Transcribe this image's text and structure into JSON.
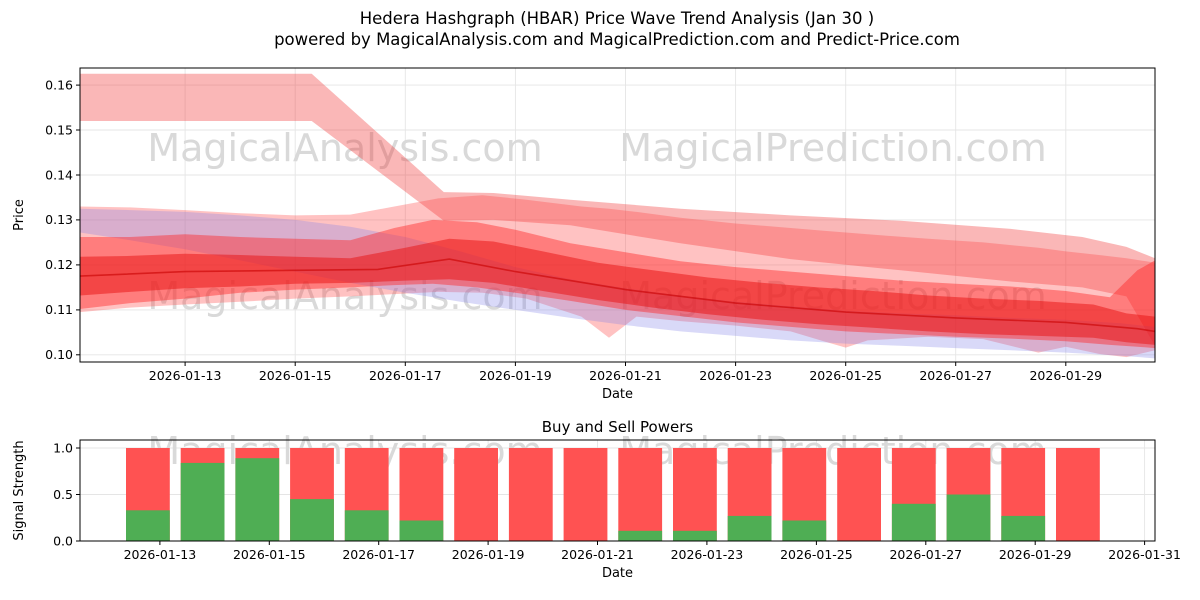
{
  "figure": {
    "title": "Hedera Hashgraph (HBAR) Price Wave Trend Analysis (Jan 30 )",
    "subtitle": "powered by MagicalAnalysis.com and MagicalPrediction.com and Predict-Price.com",
    "background_color": "#ffffff"
  },
  "watermark": {
    "texts": [
      "MagicalAnalysis.com",
      "MagicalPrediction.com"
    ],
    "color": "#d9d9d9"
  },
  "chart_data": [
    {
      "name": "price-wave-chart",
      "type": "area",
      "title": "",
      "xlabel": "Date",
      "ylabel": "Price",
      "grid": true,
      "ylim": [
        0.0984,
        0.1638
      ],
      "yticks": [
        {
          "v": 0.1,
          "label": "0.10"
        },
        {
          "v": 0.11,
          "label": "0.11"
        },
        {
          "v": 0.12,
          "label": "0.12"
        },
        {
          "v": 0.13,
          "label": "0.13"
        },
        {
          "v": 0.14,
          "label": "0.14"
        },
        {
          "v": 0.15,
          "label": "0.15"
        },
        {
          "v": 0.16,
          "label": "0.16"
        }
      ],
      "xlim_days": [
        11.09,
        30.62
      ],
      "xticks": [
        {
          "day": 13,
          "label": "2026-01-13"
        },
        {
          "day": 15,
          "label": "2026-01-15"
        },
        {
          "day": 17,
          "label": "2026-01-17"
        },
        {
          "day": 19,
          "label": "2026-01-19"
        },
        {
          "day": 21,
          "label": "2026-01-21"
        },
        {
          "day": 23,
          "label": "2026-01-23"
        },
        {
          "day": 25,
          "label": "2026-01-25"
        },
        {
          "day": 27,
          "label": "2026-01-27"
        },
        {
          "day": 29,
          "label": "2026-01-29"
        }
      ],
      "bands": [
        {
          "name": "high-plateau-forecast-band",
          "color": "#f03030",
          "opacity": 0.35,
          "x": [
            11.09,
            15.3,
            17.7,
            18.6,
            20,
            22,
            24,
            26,
            28,
            29.3,
            30.1,
            30.62
          ],
          "upper": [
            0.1625,
            0.1625,
            0.1362,
            0.136,
            0.1345,
            0.1325,
            0.131,
            0.1298,
            0.128,
            0.1262,
            0.124,
            0.1215
          ],
          "lower": [
            0.152,
            0.152,
            0.1298,
            0.13,
            0.1288,
            0.1248,
            0.1213,
            0.1188,
            0.1163,
            0.115,
            0.113,
            0.102
          ]
        },
        {
          "name": "cluster-outer-band",
          "color": "#ff4040",
          "opacity": 0.32,
          "x": [
            11.09,
            12,
            13,
            14,
            15,
            16,
            16.8,
            17.6,
            18.4,
            19.2,
            20.2,
            20.7,
            21.2,
            22,
            23,
            24,
            24.6,
            25.0,
            25.4,
            26.5,
            27.5,
            28.5,
            29.0,
            29.6,
            30.1,
            30.62
          ],
          "upper": [
            0.133,
            0.1328,
            0.1322,
            0.1315,
            0.131,
            0.1312,
            0.133,
            0.1348,
            0.1355,
            0.1345,
            0.133,
            0.1325,
            0.1318,
            0.1305,
            0.1292,
            0.1282,
            0.1276,
            0.1272,
            0.1268,
            0.1258,
            0.125,
            0.1238,
            0.123,
            0.1222,
            0.1215,
            0.1205
          ],
          "lower": [
            0.1095,
            0.1105,
            0.1112,
            0.1118,
            0.1125,
            0.113,
            0.1135,
            0.114,
            0.1138,
            0.1125,
            0.1085,
            0.1038,
            0.1085,
            0.1075,
            0.1065,
            0.1052,
            0.103,
            0.1016,
            0.1032,
            0.104,
            0.1035,
            0.1005,
            0.1018,
            0.1002,
            0.0995,
            0.101
          ]
        },
        {
          "name": "blue-confidence-band",
          "color": "#8080e8",
          "opacity": 0.3,
          "x": [
            11.09,
            12,
            13,
            14,
            15,
            16,
            17,
            18,
            19,
            20,
            21,
            22,
            23,
            24,
            25,
            26,
            27,
            28,
            29,
            30,
            30.62
          ],
          "upper": [
            0.1325,
            0.1322,
            0.1318,
            0.131,
            0.13,
            0.1285,
            0.1262,
            0.123,
            0.1195,
            0.1168,
            0.1148,
            0.1132,
            0.1118,
            0.1108,
            0.1098,
            0.1092,
            0.1088,
            0.1082,
            0.1078,
            0.107,
            0.1062
          ],
          "lower": [
            0.1272,
            0.1255,
            0.1235,
            0.121,
            0.1185,
            0.116,
            0.1138,
            0.1118,
            0.11,
            0.1082,
            0.1066,
            0.1052,
            0.1042,
            0.1032,
            0.1025,
            0.102,
            0.1015,
            0.101,
            0.1005,
            0.0998,
            0.0992
          ]
        },
        {
          "name": "red-wide-trend-band",
          "color": "#ff2020",
          "opacity": 0.42,
          "x": [
            11.09,
            12,
            13,
            14,
            15,
            16,
            16.8,
            17.5,
            18.3,
            19,
            20,
            21,
            22,
            23,
            24,
            25,
            26,
            27,
            28,
            29,
            29.8,
            30.3,
            30.62
          ],
          "upper": [
            0.1262,
            0.1262,
            0.1268,
            0.1262,
            0.1258,
            0.1255,
            0.1282,
            0.13,
            0.1295,
            0.1278,
            0.1248,
            0.1228,
            0.1208,
            0.1195,
            0.1185,
            0.1175,
            0.1165,
            0.1158,
            0.1152,
            0.1142,
            0.1128,
            0.1188,
            0.121
          ],
          "lower": [
            0.1102,
            0.1115,
            0.1125,
            0.1138,
            0.1145,
            0.115,
            0.1155,
            0.1158,
            0.115,
            0.1138,
            0.112,
            0.11,
            0.1086,
            0.1072,
            0.1062,
            0.1052,
            0.1046,
            0.104,
            0.1036,
            0.103,
            0.1022,
            0.1018,
            0.1015
          ]
        },
        {
          "name": "red-core-trend-band",
          "color": "#e81010",
          "opacity": 0.5,
          "x": [
            11.09,
            12,
            13,
            14,
            15,
            16,
            17,
            17.8,
            18.6,
            19.5,
            20.5,
            21.5,
            22.5,
            23.5,
            24.5,
            25.5,
            26.5,
            27.5,
            28.5,
            29.5,
            30.1,
            30.62
          ],
          "upper": [
            0.1218,
            0.122,
            0.1225,
            0.1222,
            0.1218,
            0.1215,
            0.1238,
            0.1258,
            0.1252,
            0.123,
            0.1205,
            0.1188,
            0.1172,
            0.116,
            0.115,
            0.1142,
            0.1132,
            0.1125,
            0.112,
            0.1112,
            0.1092,
            0.1085
          ],
          "lower": [
            0.1132,
            0.114,
            0.1148,
            0.1152,
            0.1158,
            0.116,
            0.1165,
            0.1168,
            0.116,
            0.1142,
            0.1122,
            0.1105,
            0.109,
            0.1078,
            0.1068,
            0.106,
            0.1052,
            0.1046,
            0.1042,
            0.1038,
            0.1028,
            0.1022
          ]
        }
      ],
      "median_line": {
        "color": "#c80000",
        "opacity": 0.6,
        "x": [
          11.09,
          13,
          15,
          16.5,
          17.8,
          19,
          21,
          23,
          25,
          27,
          29,
          30.3,
          30.62
        ],
        "y": [
          0.1175,
          0.1185,
          0.1188,
          0.119,
          0.1213,
          0.1185,
          0.1145,
          0.1115,
          0.1095,
          0.1082,
          0.1072,
          0.1058,
          0.1052
        ]
      }
    },
    {
      "name": "buy-sell-powers-chart",
      "type": "bar",
      "title": "Buy and Sell Powers",
      "xlabel": "Date",
      "ylabel": "Signal Strength",
      "grid": true,
      "ylim": [
        0,
        1.086
      ],
      "yticks": [
        {
          "v": 0.0,
          "label": "0.0"
        },
        {
          "v": 0.5,
          "label": "0.5"
        },
        {
          "v": 1.0,
          "label": "1.0"
        }
      ],
      "xlim_days": [
        11.54,
        31.19
      ],
      "xticks": [
        {
          "day": 13,
          "label": "2026-01-13"
        },
        {
          "day": 15,
          "label": "2026-01-15"
        },
        {
          "day": 17,
          "label": "2026-01-17"
        },
        {
          "day": 19,
          "label": "2026-01-19"
        },
        {
          "day": 21,
          "label": "2026-01-21"
        },
        {
          "day": 23,
          "label": "2026-01-23"
        },
        {
          "day": 25,
          "label": "2026-01-25"
        },
        {
          "day": 27,
          "label": "2026-01-27"
        },
        {
          "day": 29,
          "label": "2026-01-29"
        },
        {
          "day": 31,
          "label": "2026-01-31"
        }
      ],
      "bar_width_days": 0.8,
      "bar_offset_days": 0.78,
      "colors": {
        "sell": "#ff5252",
        "buy": "#4fae54"
      },
      "bars": [
        {
          "date": "2026-01-12",
          "day": 12,
          "sell": 1.0,
          "buy": 0.33
        },
        {
          "date": "2026-01-13",
          "day": 13,
          "sell": 1.0,
          "buy": 0.84
        },
        {
          "date": "2026-01-14",
          "day": 14,
          "sell": 1.0,
          "buy": 0.89
        },
        {
          "date": "2026-01-15",
          "day": 15,
          "sell": 1.0,
          "buy": 0.45
        },
        {
          "date": "2026-01-16",
          "day": 16,
          "sell": 1.0,
          "buy": 0.33
        },
        {
          "date": "2026-01-17",
          "day": 17,
          "sell": 1.0,
          "buy": 0.22
        },
        {
          "date": "2026-01-18",
          "day": 18,
          "sell": 1.0,
          "buy": 0.0
        },
        {
          "date": "2026-01-19",
          "day": 19,
          "sell": 1.0,
          "buy": 0.0
        },
        {
          "date": "2026-01-20",
          "day": 20,
          "sell": 1.0,
          "buy": 0.0
        },
        {
          "date": "2026-01-21",
          "day": 21,
          "sell": 1.0,
          "buy": 0.11
        },
        {
          "date": "2026-01-22",
          "day": 22,
          "sell": 1.0,
          "buy": 0.11
        },
        {
          "date": "2026-01-23",
          "day": 23,
          "sell": 1.0,
          "buy": 0.27
        },
        {
          "date": "2026-01-24",
          "day": 24,
          "sell": 1.0,
          "buy": 0.22
        },
        {
          "date": "2026-01-25",
          "day": 25,
          "sell": 1.0,
          "buy": 0.0
        },
        {
          "date": "2026-01-26",
          "day": 26,
          "sell": 1.0,
          "buy": 0.4
        },
        {
          "date": "2026-01-27",
          "day": 27,
          "sell": 1.0,
          "buy": 0.5
        },
        {
          "date": "2026-01-28",
          "day": 28,
          "sell": 1.0,
          "buy": 0.27
        },
        {
          "date": "2026-01-29",
          "day": 29,
          "sell": 1.0,
          "buy": 0.0
        }
      ]
    }
  ]
}
